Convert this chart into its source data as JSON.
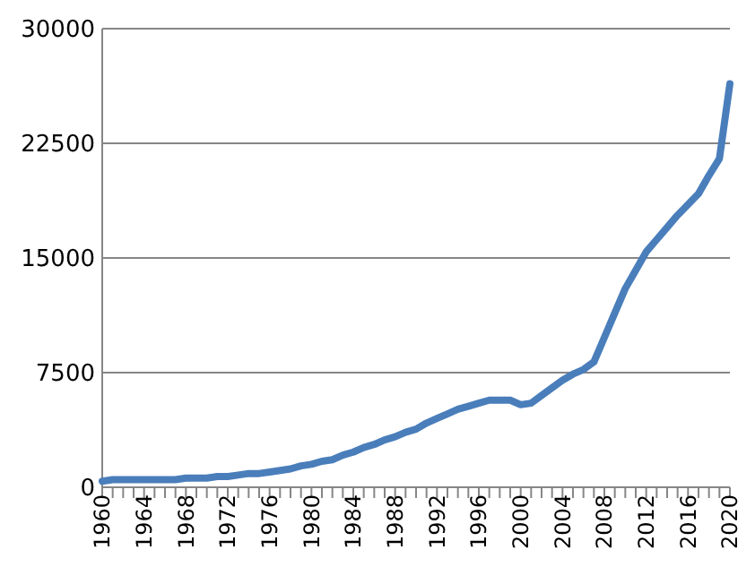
{
  "chart_data": {
    "type": "line",
    "categories": [
      "1960",
      null,
      null,
      null,
      "1964",
      null,
      null,
      null,
      "1968",
      null,
      null,
      null,
      "1972",
      null,
      null,
      null,
      "1976",
      null,
      null,
      null,
      "1980",
      null,
      null,
      null,
      "1984",
      null,
      null,
      null,
      "1988",
      null,
      null,
      null,
      "1992",
      null,
      null,
      null,
      "1996",
      null,
      null,
      null,
      "2000",
      null,
      null,
      null,
      "2004",
      null,
      null,
      null,
      "2008",
      null,
      null,
      null,
      "2012",
      null,
      null,
      null,
      "2016",
      null,
      null,
      null,
      "2020"
    ],
    "series": [
      {
        "color": "#4a7ebb",
        "values": [
          400,
          500,
          500,
          500,
          500,
          500,
          500,
          500,
          600,
          600,
          600,
          700,
          700,
          800,
          900,
          900,
          1000,
          1100,
          1200,
          1400,
          1500,
          1700,
          1800,
          2100,
          2300,
          2600,
          2800,
          3100,
          3300,
          3600,
          3800,
          4200,
          4500,
          4800,
          5100,
          5300,
          5500,
          5700,
          5700,
          5700,
          5400,
          5500,
          6000,
          6500,
          7000,
          7400,
          7700,
          8200,
          9800,
          11400,
          13000,
          14200,
          15400,
          16200,
          17000,
          17800,
          18500,
          19200,
          20400,
          21500,
          26400
        ]
      }
    ],
    "ylim": [
      0,
      30000
    ],
    "yticks": [
      0,
      7500,
      15000,
      22500,
      30000
    ],
    "grid": "y",
    "marker": "none",
    "line_style": "solid"
  }
}
